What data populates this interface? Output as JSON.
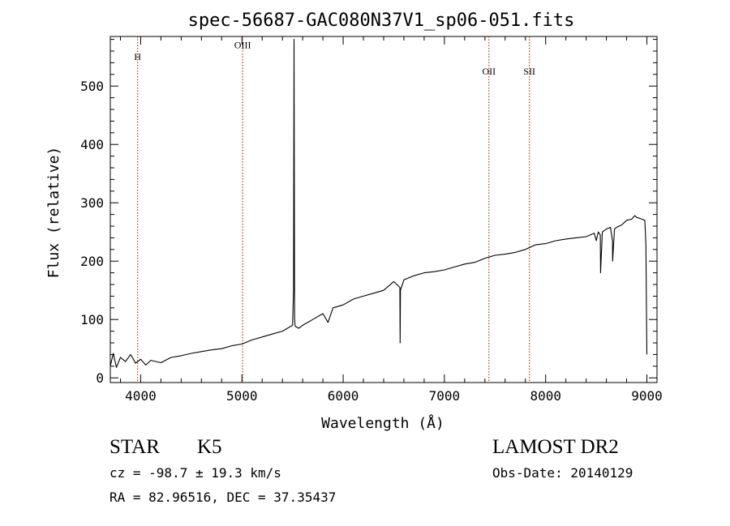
{
  "chart_data": {
    "type": "line",
    "title": "spec-56687-GAC080N37V1_sp06-051.fits",
    "xlabel": "Wavelength (Å)",
    "ylabel": "Flux (relative)",
    "xlim": [
      3700,
      9100
    ],
    "ylim": [
      -8,
      585
    ],
    "xticks": [
      {
        "value": 4000,
        "label": "4000"
      },
      {
        "value": 5000,
        "label": "5000"
      },
      {
        "value": 6000,
        "label": "6000"
      },
      {
        "value": 7000,
        "label": "7000"
      },
      {
        "value": 8000,
        "label": "8000"
      },
      {
        "value": 9000,
        "label": "9000"
      }
    ],
    "yticks": [
      {
        "value": 0,
        "label": "0"
      },
      {
        "value": 100,
        "label": "100"
      },
      {
        "value": 200,
        "label": "200"
      },
      {
        "value": 300,
        "label": "300"
      },
      {
        "value": 400,
        "label": "400"
      },
      {
        "value": 500,
        "label": "500"
      }
    ],
    "grid": false,
    "line_markers": [
      {
        "label": "H",
        "wavelength": 3970,
        "label_y": 545
      },
      {
        "label": "OIII",
        "wavelength": 5007,
        "label_y": 565
      },
      {
        "label": "OII",
        "wavelength": 7440,
        "label_y": 520
      },
      {
        "label": "SII",
        "wavelength": 7840,
        "label_y": 520
      }
    ],
    "marker_color": "#c00000",
    "series": [
      {
        "x": [
          3700,
          3730,
          3760,
          3800,
          3850,
          3900,
          3950,
          4000,
          4050,
          4100,
          4200,
          4300,
          4400,
          4500,
          4600,
          4700,
          4800,
          4900,
          5000,
          5100,
          5200,
          5300,
          5400,
          5450,
          5500,
          5510,
          5515,
          5520,
          5525,
          5530,
          5560,
          5600,
          5700,
          5800,
          5850,
          5900,
          6000,
          6100,
          6200,
          6300,
          6400,
          6500,
          6560,
          6563,
          6566,
          6600,
          6700,
          6800,
          6900,
          7000,
          7100,
          7200,
          7300,
          7400,
          7500,
          7600,
          7700,
          7800,
          7900,
          8000,
          8100,
          8200,
          8300,
          8400,
          8480,
          8500,
          8520,
          8540,
          8542,
          8560,
          8600,
          8640,
          8660,
          8662,
          8680,
          8700,
          8750,
          8800,
          8850,
          8880,
          8900,
          8950,
          8980,
          8990,
          9000
        ],
        "y": [
          20,
          42,
          18,
          35,
          28,
          40,
          25,
          32,
          22,
          30,
          26,
          35,
          38,
          42,
          45,
          48,
          50,
          55,
          58,
          65,
          70,
          75,
          80,
          85,
          90,
          150,
          580,
          100,
          90,
          88,
          85,
          90,
          100,
          110,
          95,
          120,
          125,
          135,
          140,
          145,
          150,
          165,
          155,
          60,
          150,
          168,
          175,
          180,
          182,
          185,
          190,
          195,
          198,
          205,
          210,
          212,
          215,
          220,
          228,
          230,
          235,
          238,
          240,
          242,
          248,
          235,
          250,
          245,
          180,
          250,
          255,
          258,
          235,
          200,
          255,
          258,
          262,
          270,
          272,
          278,
          275,
          272,
          270,
          230,
          40
        ]
      }
    ]
  },
  "info": {
    "class_label": "STAR",
    "subclass": "K5",
    "survey": "LAMOST DR2",
    "cz": "cz = -98.7 ± 19.3 km/s",
    "obs_date": "Obs-Date: 20140129",
    "coords": "RA =  82.96516, DEC =  37.35437"
  }
}
